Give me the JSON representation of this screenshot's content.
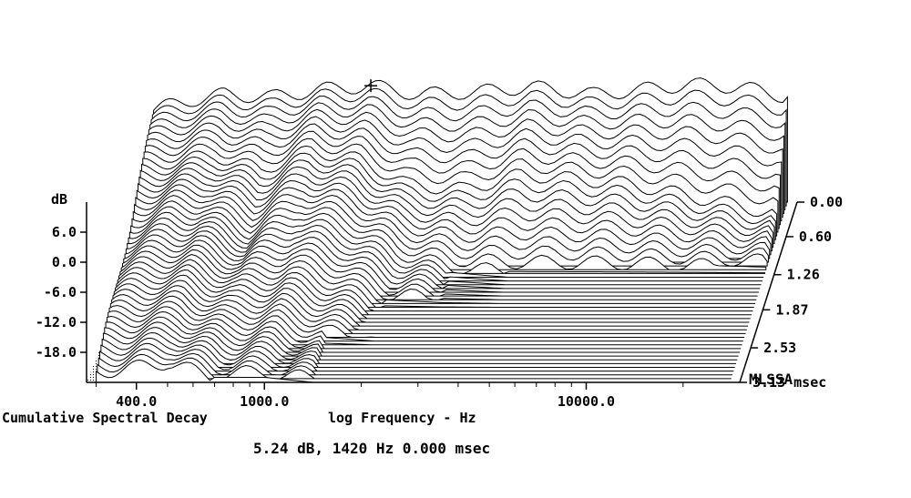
{
  "chart_data": {
    "type": "area",
    "subtype": "waterfall-3d",
    "title": "Cumulative Spectral Decay",
    "xlabel": "log Frequency - Hz",
    "ylabel": "dB",
    "zlabel": "msec",
    "x_scale": "log",
    "x_tick_labels": [
      "400.0",
      "1000.0",
      "10000.0"
    ],
    "x_ticks_hz": [
      400,
      1000,
      10000
    ],
    "y_tick_labels": [
      "6.0",
      "0.0",
      "-6.0",
      "-12.0",
      "-18.0"
    ],
    "y_ticks_db": [
      6,
      0,
      -6,
      -12,
      -18
    ],
    "z_tick_labels": [
      "0.00",
      "0.60",
      "1.26",
      "1.87",
      "2.53",
      "3.13 msec"
    ],
    "z_ticks_ms": [
      0.0,
      0.6,
      1.26,
      1.87,
      2.53,
      3.13
    ],
    "brand": "MLSSA",
    "cursor_readout": "5.24 dB, 1420 Hz  0.000 msec",
    "cursor": {
      "db": 5.24,
      "hz": 1420,
      "ms": 0.0
    },
    "series": [
      {
        "slice_ms": 0.0,
        "x_hz": [
          300,
          400,
          500,
          700,
          1000,
          1420,
          2000,
          3000,
          4500,
          7000,
          10000,
          14000,
          20000,
          28000
        ],
        "y_db": [
          0.5,
          2.5,
          3.5,
          3.0,
          4.5,
          5.24,
          3.5,
          4.0,
          5.0,
          3.5,
          4.5,
          5.5,
          5.0,
          3.0
        ]
      },
      {
        "slice_ms": 0.6,
        "x_hz": [
          300,
          400,
          500,
          700,
          1000,
          1420,
          2000,
          3000,
          4500,
          7000,
          10000,
          14000,
          20000,
          28000
        ],
        "y_db": [
          -4,
          -3,
          -2,
          -5,
          -1,
          -3,
          -8,
          -9,
          -6,
          -7,
          -8,
          -10,
          -12,
          -14
        ]
      },
      {
        "slice_ms": 1.26,
        "x_hz": [
          300,
          400,
          500,
          700,
          1000,
          1420,
          2000,
          3000,
          4500,
          7000,
          10000,
          14000,
          20000,
          28000
        ],
        "y_db": [
          -8,
          -6,
          -6,
          -10,
          -6,
          -9,
          -14,
          -17,
          -18,
          -18,
          -18,
          -18,
          -18,
          -18
        ]
      },
      {
        "slice_ms": 1.87,
        "x_hz": [
          300,
          400,
          500,
          700,
          1000,
          1420,
          2000,
          3000,
          4500,
          7000,
          10000,
          14000,
          20000,
          28000
        ],
        "y_db": [
          -10,
          -9,
          -9,
          -12,
          -11,
          -14,
          -18,
          -18,
          -18,
          -18,
          -18,
          -18,
          -18,
          -18
        ]
      },
      {
        "slice_ms": 2.53,
        "x_hz": [
          300,
          400,
          500,
          700,
          1000,
          1420,
          2000,
          3000,
          4500,
          7000,
          10000,
          14000,
          20000,
          28000
        ],
        "y_db": [
          -13,
          -12,
          -12,
          -15,
          -15,
          -18,
          -18,
          -18,
          -18,
          -18,
          -18,
          -18,
          -18,
          -18
        ]
      },
      {
        "slice_ms": 3.13,
        "x_hz": [
          300,
          400,
          500,
          700,
          1000,
          1420,
          2000,
          3000,
          4500,
          7000,
          10000,
          14000,
          20000,
          28000
        ],
        "y_db": [
          -16,
          -15,
          -14,
          -17,
          -17,
          -18,
          -18,
          -18,
          -18,
          -18,
          -18,
          -18,
          -18,
          -18
        ]
      }
    ],
    "grid": false,
    "colors": {
      "background": "#ffffff",
      "lines": "#000000"
    }
  }
}
